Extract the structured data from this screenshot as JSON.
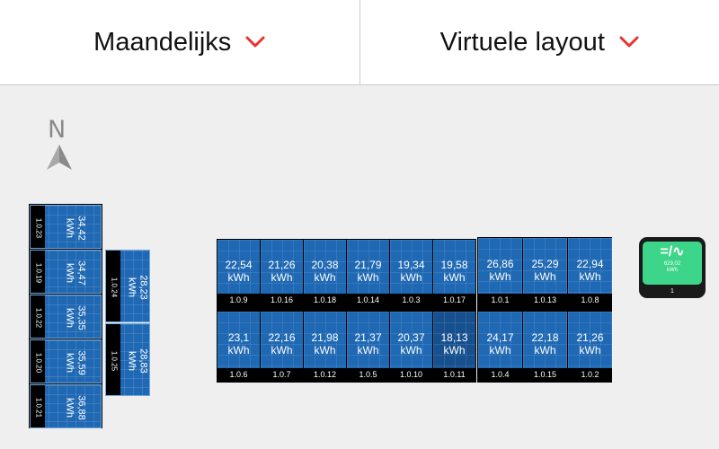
{
  "header": {
    "period_label": "Maandelijks",
    "layout_label": "Virtuele layout"
  },
  "compass": {
    "letter": "N"
  },
  "colors": {
    "accent": "#e8322f",
    "panel": "#1f68b3",
    "inverter": "#3dd58a"
  },
  "left_group": [
    {
      "value": "34,42",
      "unit": "kWh",
      "label": "1.0.23"
    },
    {
      "value": "34,47",
      "unit": "kWh",
      "label": "1.0.19"
    },
    {
      "value": "35,35",
      "unit": "kWh",
      "label": "1.0.22"
    },
    {
      "value": "35,59",
      "unit": "kWh",
      "label": "1.0.20"
    },
    {
      "value": "36,88",
      "unit": "kWh",
      "label": "1.0.21"
    }
  ],
  "mid_group": [
    {
      "value": "28,23",
      "unit": "kWh",
      "label": "1.0.24"
    },
    {
      "value": "28,83",
      "unit": "kWh",
      "label": "1.0.25"
    }
  ],
  "main_top": [
    {
      "value": "22,54",
      "unit": "kWh",
      "label": "1.0.9"
    },
    {
      "value": "21,26",
      "unit": "kWh",
      "label": "1.0.16"
    },
    {
      "value": "20,38",
      "unit": "kWh",
      "label": "1.0.18"
    },
    {
      "value": "21,79",
      "unit": "kWh",
      "label": "1.0.14"
    },
    {
      "value": "19,34",
      "unit": "kWh",
      "label": "1.0.3"
    },
    {
      "value": "19,58",
      "unit": "kWh",
      "label": "1.0.17"
    }
  ],
  "main_bottom": [
    {
      "value": "23,1",
      "unit": "kWh",
      "label": "1.0.6"
    },
    {
      "value": "22,16",
      "unit": "kWh",
      "label": "1.0.7"
    },
    {
      "value": "21,98",
      "unit": "kWh",
      "label": "1.0.12"
    },
    {
      "value": "21,37",
      "unit": "kWh",
      "label": "1.0.5"
    },
    {
      "value": "20,37",
      "unit": "kWh",
      "label": "1.0.10"
    },
    {
      "value": "18,13",
      "unit": "kWh",
      "label": "1.0.11"
    }
  ],
  "right_top": [
    {
      "value": "26,86",
      "unit": "kWh",
      "label": "1.0.1"
    },
    {
      "value": "25,29",
      "unit": "kWh",
      "label": "1.0.13"
    },
    {
      "value": "22,94",
      "unit": "kWh",
      "label": "1.0.8"
    }
  ],
  "right_bottom": [
    {
      "value": "24,17",
      "unit": "kWh",
      "label": "1.0.4"
    },
    {
      "value": "22,18",
      "unit": "kWh",
      "label": "1.0.15"
    },
    {
      "value": "21,26",
      "unit": "kWh",
      "label": "1.0.2"
    }
  ],
  "inverter": {
    "symbol": "=/∿",
    "value": "629,02",
    "unit": "kWh",
    "label": "1"
  }
}
